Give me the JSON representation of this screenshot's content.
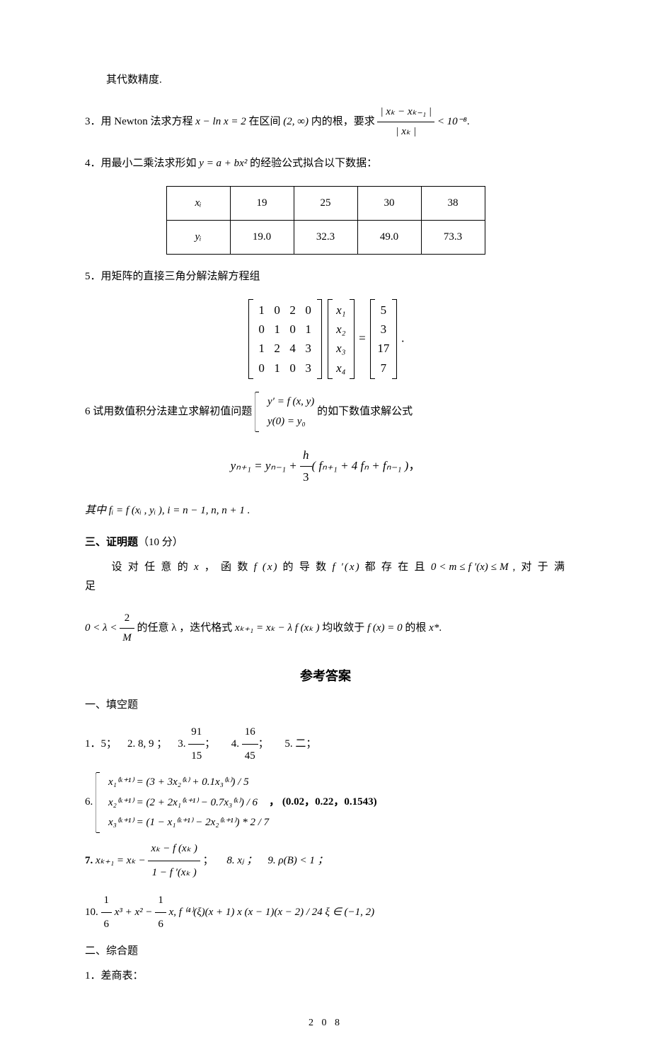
{
  "p0": "其代数精度.",
  "p3": {
    "label": "3．",
    "text1": "用 Newton 法求方程 ",
    "eq1": "x − ln x = 2",
    "text2": " 在区间 ",
    "interval": "(2, ∞)",
    "text3": " 内的根，要求 ",
    "cond_num": "| xₖ − xₖ₋₁ |",
    "cond_den": "| xₖ |",
    "cond_rhs": " < 10⁻⁸",
    "period": "."
  },
  "p4": {
    "label": "4．",
    "text1": "用最小二乘法求形如 ",
    "eq": "y = a + bx²",
    "text2": " 的经验公式拟合以下数据：",
    "table": {
      "header_x": "xᵢ",
      "header_y": "yᵢ",
      "x": [
        "19",
        "25",
        "30",
        "38"
      ],
      "y": [
        "19.0",
        "32.3",
        "49.0",
        "73.3"
      ]
    }
  },
  "p5": {
    "label": "5．",
    "text": "用矩阵的直接三角分解法解方程组",
    "A": [
      [
        "1",
        "0",
        "2",
        "0"
      ],
      [
        "0",
        "1",
        "0",
        "1"
      ],
      [
        "1",
        "2",
        "4",
        "3"
      ],
      [
        "0",
        "1",
        "0",
        "3"
      ]
    ],
    "x": [
      "x₁",
      "x₂",
      "x₃",
      "x₄"
    ],
    "b": [
      "5",
      "3",
      "17",
      "7"
    ],
    "period": "."
  },
  "p6": {
    "label": "6",
    "text1": "  试用数值积分法建立求解初值问题 ",
    "ivp1": "y′ = f (x, y)",
    "ivp2": "y(0) = y₀",
    "text2": " 的如下数值求解公式",
    "formula_lhs": "yₙ₊₁ = yₙ₋₁ + ",
    "frac_num": "h",
    "frac_den": "3",
    "formula_rhs": "( fₙ₊₁ + 4 fₙ + fₙ₋₁ )",
    "comma": "，",
    "where": "其中 fᵢ = f (xᵢ , yᵢ ),    i = n − 1, n, n + 1 ."
  },
  "p7": {
    "section": "三、证明题",
    "points": "（10 分）",
    "text1": "设 对 任 意 的 ",
    "var": "x",
    "text2": " ， 函 数 ",
    "fx": "f (x)",
    "text3": " 的 导 数 ",
    "fpx": "f ′(x)",
    "text4": " 都 存 在 且 ",
    "cond": "0 < m ≤ f ′(x) ≤ M",
    "text5": " , 对 于 满 足",
    "line2a": "0 < λ < ",
    "l2_num": "2",
    "l2_den": "M",
    "line2b": " 的任意 λ ，迭代格式 ",
    "iter": "xₖ₊₁ = xₖ − λ f (xₖ )",
    "line2c": " 均收敛于 ",
    "eq0": "f (x) = 0",
    "line2d": " 的根 ",
    "root": "x*",
    "period": "."
  },
  "answers": {
    "title": "参考答案",
    "sec1": "一、填空题",
    "a1": "1．5；",
    "a2": "2.    8, 9 ；",
    "a3_label": "3.    ",
    "a3_num": "91",
    "a3_den": "15",
    "a3_end": "；",
    "a4_label": "4.    ",
    "a4_num": "16",
    "a4_den": "45",
    "a4_end": "；",
    "a5": "5.  二；",
    "a6_label": "6.   ",
    "a6_r1": "x₁⁽ᵏ⁺¹⁾ = (3 + 3x₂⁽ᵏ⁾ + 0.1x₃⁽ᵏ⁾) / 5",
    "a6_r2": "x₂⁽ᵏ⁺¹⁾ = (2 + 2x₁⁽ᵏ⁺¹⁾ − 0.7x₃⁽ᵏ⁾) / 6",
    "a6_r3": "x₃⁽ᵏ⁺¹⁾ = (1 − x₁⁽ᵏ⁺¹⁾ − 2x₂⁽ᵏ⁺¹⁾) * 2 / 7",
    "a6_vals": "，    (0.02，0.22，0.1543)",
    "a7_label": "7.   ",
    "a7_lhs": "xₖ₊₁ = xₖ − ",
    "a7_num": "xₖ − f (xₖ )",
    "a7_den": "1 − f ′(xₖ )",
    "a7_end": " ；",
    "a8": "8.    xⱼ ；",
    "a9": "9.   ρ(B) < 1 ；",
    "a10_label": "10.   ",
    "a10_t1n": "1",
    "a10_t1d": "6",
    "a10_t1": " x³ + x² − ",
    "a10_t2n": "1",
    "a10_t2d": "6",
    "a10_t2": " x,     f ⁽⁴⁾(ξ)(x + 1) x (x − 1)(x − 2) / 24     ξ ∈ (−1, 2)",
    "sec2": "二、综合题",
    "sec2_1": "1．差商表："
  },
  "page_number": "2 0 8"
}
